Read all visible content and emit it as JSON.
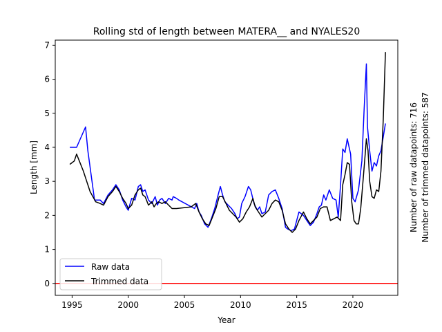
{
  "chart_data": {
    "type": "line",
    "title": "Rolling std of length between MATERA__ and NYALES20",
    "xlabel": "Year",
    "ylabel": "Length [mm]",
    "xlim": [
      1993.5,
      2024.0
    ],
    "ylim": [
      -0.35,
      7.15
    ],
    "xticks": [
      1995,
      2000,
      2005,
      2010,
      2015,
      2020
    ],
    "yticks": [
      0,
      1,
      2,
      3,
      4,
      5,
      6,
      7
    ],
    "grid": false,
    "legend_position": "lower left",
    "reference_line": {
      "y": 0,
      "color": "#ff0000"
    },
    "side_text": [
      "Number of raw datapoints: 716",
      "Number of trimmed datapoints: 587"
    ],
    "series": [
      {
        "name": "Raw data",
        "color": "#0000ff",
        "x": [
          1994.8,
          1995.0,
          1995.4,
          1996.2,
          1996.4,
          1997.0,
          1997.5,
          1997.8,
          1998.2,
          1998.6,
          1998.9,
          1999.2,
          1999.5,
          1999.8,
          2000.0,
          2000.3,
          2000.6,
          2000.9,
          2001.1,
          2001.3,
          2001.5,
          2001.8,
          2002.1,
          2002.4,
          2002.6,
          2002.8,
          2003.0,
          2003.3,
          2003.6,
          2003.9,
          2004.0,
          2004.3,
          2004.5,
          2005.9,
          2006.1,
          2006.3,
          2006.5,
          2006.8,
          2007.1,
          2007.4,
          2007.7,
          2008.0,
          2008.2,
          2008.4,
          2008.6,
          2008.9,
          2009.2,
          2009.5,
          2009.7,
          2009.9,
          2010.1,
          2010.4,
          2010.7,
          2010.9,
          2011.2,
          2011.5,
          2011.7,
          2011.9,
          2012.2,
          2012.5,
          2012.8,
          2013.1,
          2013.4,
          2013.7,
          2014.0,
          2014.2,
          2014.5,
          2014.8,
          2015.0,
          2015.2,
          2015.6,
          2015.9,
          2016.2,
          2016.5,
          2016.8,
          2017.0,
          2017.2,
          2017.4,
          2017.6,
          2017.9,
          2018.2,
          2018.5,
          2018.7,
          2018.9,
          2019.1,
          2019.3,
          2019.5,
          2019.8,
          2020.0,
          2020.2,
          2020.5,
          2020.8,
          2021.0,
          2021.2,
          2021.3,
          2021.5,
          2021.7,
          2021.9,
          2022.1,
          2022.3,
          2022.5,
          2022.7,
          2022.9
        ],
        "y": [
          4.0,
          4.0,
          4.0,
          4.6,
          3.9,
          2.45,
          2.45,
          2.35,
          2.6,
          2.75,
          2.9,
          2.75,
          2.45,
          2.25,
          2.15,
          2.5,
          2.45,
          2.85,
          2.9,
          2.7,
          2.75,
          2.45,
          2.35,
          2.55,
          2.3,
          2.45,
          2.5,
          2.35,
          2.5,
          2.45,
          2.55,
          2.5,
          2.45,
          2.2,
          2.35,
          2.1,
          2.0,
          1.75,
          1.65,
          1.9,
          2.2,
          2.6,
          2.85,
          2.6,
          2.4,
          2.3,
          2.2,
          2.05,
          1.9,
          1.95,
          2.35,
          2.55,
          2.85,
          2.75,
          2.35,
          2.15,
          2.25,
          2.05,
          2.1,
          2.6,
          2.7,
          2.75,
          2.5,
          2.2,
          1.65,
          1.6,
          1.55,
          1.6,
          1.85,
          2.1,
          2.0,
          1.85,
          1.7,
          1.8,
          2.05,
          2.25,
          2.3,
          2.6,
          2.45,
          2.75,
          2.5,
          2.45,
          1.95,
          2.9,
          3.95,
          3.85,
          4.25,
          3.8,
          2.5,
          2.4,
          2.75,
          3.6,
          5.1,
          6.45,
          4.6,
          3.9,
          3.3,
          3.55,
          3.45,
          3.75,
          3.9,
          4.3,
          4.7
        ]
      },
      {
        "name": "Trimmed data",
        "color": "#000000",
        "x": [
          1994.8,
          1995.0,
          1995.2,
          1995.4,
          1996.0,
          1996.6,
          1997.1,
          1997.5,
          1997.8,
          1998.2,
          1998.6,
          1998.9,
          1999.2,
          1999.5,
          1999.8,
          2000.0,
          2000.3,
          2000.6,
          2000.9,
          2001.1,
          2001.3,
          2001.5,
          2001.8,
          2002.1,
          2002.3,
          2002.5,
          2002.7,
          2003.0,
          2003.3,
          2003.6,
          2003.9,
          2004.1,
          2004.3,
          2005.6,
          2006.0,
          2006.3,
          2006.6,
          2006.9,
          2007.2,
          2007.5,
          2007.8,
          2008.1,
          2008.4,
          2008.7,
          2009.0,
          2009.3,
          2009.6,
          2009.9,
          2010.2,
          2010.5,
          2010.8,
          2011.1,
          2011.3,
          2011.6,
          2011.9,
          2012.2,
          2012.5,
          2012.8,
          2013.1,
          2013.4,
          2013.7,
          2014.0,
          2014.3,
          2014.6,
          2014.9,
          2015.2,
          2015.6,
          2015.9,
          2016.2,
          2016.5,
          2016.8,
          2017.1,
          2017.4,
          2017.7,
          2018.0,
          2018.3,
          2018.6,
          2018.9,
          2019.1,
          2019.3,
          2019.5,
          2019.7,
          2019.9,
          2020.1,
          2020.3,
          2020.5,
          2020.7,
          2020.9,
          2021.1,
          2021.2,
          2021.35,
          2021.5,
          2021.7,
          2021.9,
          2022.1,
          2022.3,
          2022.5,
          2022.7,
          2022.9
        ],
        "y": [
          3.5,
          3.55,
          3.6,
          3.8,
          3.3,
          2.7,
          2.4,
          2.35,
          2.3,
          2.55,
          2.7,
          2.85,
          2.7,
          2.5,
          2.35,
          2.2,
          2.3,
          2.6,
          2.75,
          2.8,
          2.6,
          2.55,
          2.3,
          2.4,
          2.25,
          2.35,
          2.4,
          2.35,
          2.4,
          2.3,
          2.2,
          2.2,
          2.2,
          2.25,
          2.35,
          2.1,
          1.9,
          1.75,
          1.7,
          1.95,
          2.2,
          2.55,
          2.55,
          2.35,
          2.15,
          2.05,
          1.95,
          1.8,
          1.9,
          2.1,
          2.25,
          2.5,
          2.25,
          2.1,
          1.95,
          2.05,
          2.15,
          2.35,
          2.45,
          2.4,
          2.15,
          1.75,
          1.6,
          1.5,
          1.6,
          1.85,
          2.1,
          1.9,
          1.75,
          1.85,
          1.95,
          2.2,
          2.25,
          2.25,
          1.85,
          1.9,
          1.95,
          1.85,
          2.9,
          3.2,
          3.55,
          3.5,
          2.4,
          1.85,
          1.75,
          1.75,
          2.2,
          3.0,
          3.8,
          4.25,
          3.9,
          3.0,
          2.55,
          2.5,
          2.75,
          2.7,
          3.3,
          4.8,
          6.8
        ]
      }
    ]
  }
}
